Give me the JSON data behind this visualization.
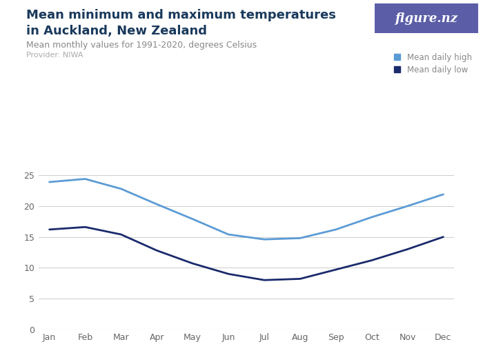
{
  "title_line1": "Mean minimum and maximum temperatures",
  "title_line2": "in Auckland, New Zealand",
  "subtitle": "Mean monthly values for 1991-2020, degrees Celsius",
  "provider": "Provider: NIWA",
  "months": [
    "Jan",
    "Feb",
    "Mar",
    "Apr",
    "May",
    "Jun",
    "Jul",
    "Aug",
    "Sep",
    "Oct",
    "Nov",
    "Dec"
  ],
  "mean_daily_high": [
    23.9,
    24.4,
    22.8,
    20.3,
    17.9,
    15.4,
    14.6,
    14.8,
    16.2,
    18.2,
    20.0,
    21.9
  ],
  "mean_daily_low": [
    16.2,
    16.6,
    15.4,
    12.8,
    10.7,
    9.0,
    8.0,
    8.2,
    9.7,
    11.2,
    13.0,
    15.0
  ],
  "high_color": "#5b9bd5",
  "low_color": "#1a2a6c",
  "ylim": [
    0,
    27
  ],
  "yticks": [
    0,
    5,
    10,
    15,
    20,
    25
  ],
  "background_color": "#ffffff",
  "grid_color": "#cccccc",
  "title_color": "#1a3a5c",
  "subtitle_color": "#888888",
  "provider_color": "#aaaaaa",
  "legend_high": "Mean daily high",
  "legend_low": "Mean daily low",
  "figsize": [
    7.0,
    5.25
  ],
  "dpi": 100,
  "badge_color": "#5b5ea6",
  "badge_text": "figure.nz"
}
